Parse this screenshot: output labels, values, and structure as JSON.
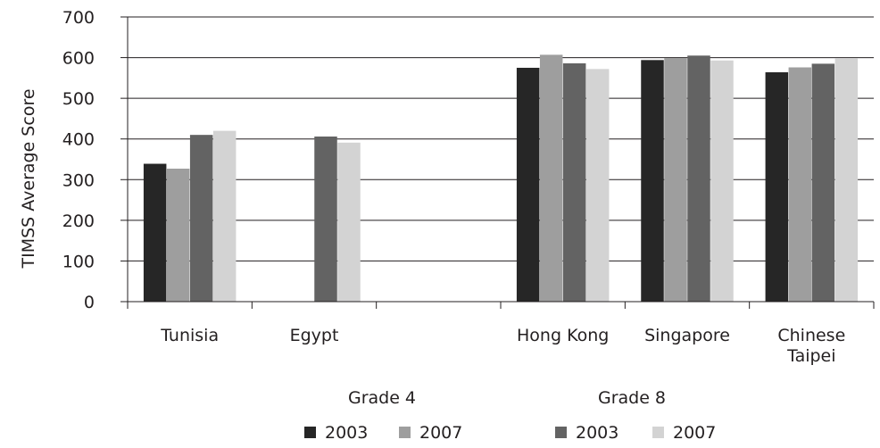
{
  "chart_data": {
    "type": "bar",
    "ylabel": "TIMSS Average Score",
    "yticks": [
      "0",
      "100",
      "200",
      "300",
      "400",
      "500",
      "600",
      "700"
    ],
    "ylim": [
      0,
      700
    ],
    "grid": true,
    "categories": [
      {
        "label": [
          "Tunisia"
        ]
      },
      {
        "label": [
          "Egypt"
        ]
      },
      {
        "label": []
      },
      {
        "label": [
          "Hong Kong"
        ]
      },
      {
        "label": [
          "Singapore"
        ]
      },
      {
        "label": [
          "Chinese",
          "Taipei"
        ]
      }
    ],
    "series": [
      {
        "group": "Grade 4",
        "name": "2003",
        "color": "#262626",
        "values": [
          339,
          null,
          null,
          575,
          594,
          564
        ]
      },
      {
        "group": "Grade 4",
        "name": "2007",
        "color": "#9e9e9e",
        "values": [
          327,
          null,
          null,
          607,
          599,
          576
        ]
      },
      {
        "group": "Grade 8",
        "name": "2003",
        "color": "#636363",
        "values": [
          410,
          406,
          null,
          586,
          605,
          585
        ]
      },
      {
        "group": "Grade 8",
        "name": "2007",
        "color": "#d3d3d3",
        "values": [
          420,
          391,
          null,
          572,
          593,
          598
        ]
      }
    ],
    "legend": {
      "placement": "bottom",
      "groups": [
        "Grade 4",
        "Grade 8"
      ]
    }
  }
}
